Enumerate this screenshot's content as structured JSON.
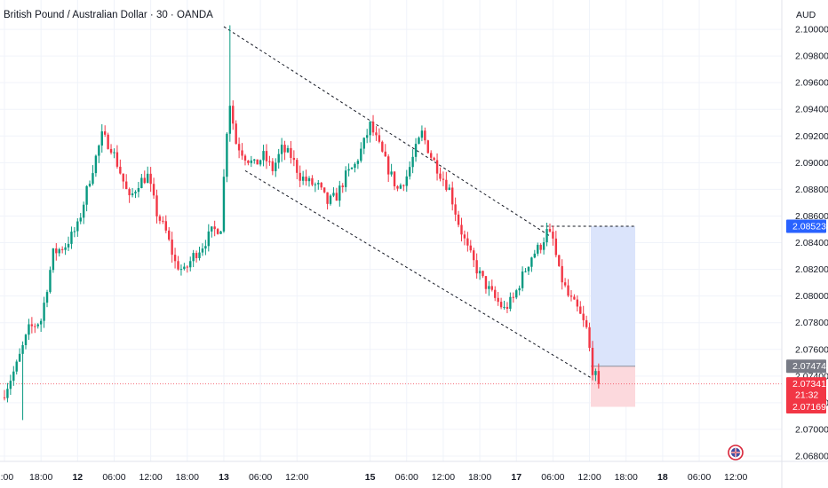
{
  "header": {
    "title": "British Pound / Australian Dollar · 30 · OANDA",
    "currency": "AUD"
  },
  "colors": {
    "up": "#089981",
    "down": "#f23645",
    "grid": "#f0f3fa",
    "blue_label": "#2962ff",
    "red_label": "#f23645",
    "gray_label": "#787b86",
    "profit_zone": "#dbe4fb",
    "loss_zone": "#fcd9dd"
  },
  "price_labels": {
    "target": "2.08523",
    "entry": "2.07474",
    "current": "2.07341",
    "countdown": "21:32",
    "stop": "2.07169"
  },
  "chart_data": {
    "type": "candlestick",
    "title": "British Pound / Australian Dollar · 30 · OANDA",
    "ylabel": "AUD",
    "ylim": [
      2.0676,
      2.1022
    ],
    "y_ticks": [
      "2.10000",
      "2.09800",
      "2.09600",
      "2.09400",
      "2.09200",
      "2.09000",
      "2.08800",
      "2.08600",
      "2.08400",
      "2.08200",
      "2.08000",
      "2.07800",
      "2.07600",
      "2.07400",
      "2.07200",
      "2.07000",
      "2.06800"
    ],
    "x_ticks": [
      {
        "label": "2:00",
        "bar": 0,
        "bold": false
      },
      {
        "label": "18:00",
        "bar": 12,
        "bold": false
      },
      {
        "label": "12",
        "bar": 24,
        "bold": true
      },
      {
        "label": "06:00",
        "bar": 36,
        "bold": false
      },
      {
        "label": "12:00",
        "bar": 48,
        "bold": false
      },
      {
        "label": "18:00",
        "bar": 60,
        "bold": false
      },
      {
        "label": "13",
        "bar": 72,
        "bold": true
      },
      {
        "label": "06:00",
        "bar": 84,
        "bold": false
      },
      {
        "label": "12:00",
        "bar": 96,
        "bold": false
      },
      {
        "label": "15",
        "bar": 120,
        "bold": true
      },
      {
        "label": "06:00",
        "bar": 132,
        "bold": false
      },
      {
        "label": "12:00",
        "bar": 144,
        "bold": false
      },
      {
        "label": "18:00",
        "bar": 156,
        "bold": false
      },
      {
        "label": "17",
        "bar": 168,
        "bold": true
      },
      {
        "label": "06:00",
        "bar": 180,
        "bold": false
      },
      {
        "label": "12:00",
        "bar": 192,
        "bold": false
      },
      {
        "label": "18:00",
        "bar": 204,
        "bold": false
      },
      {
        "label": "18",
        "bar": 216,
        "bold": true
      },
      {
        "label": "06:00",
        "bar": 228,
        "bold": false
      },
      {
        "label": "12:00",
        "bar": 240,
        "bold": false
      }
    ],
    "close_anchors": [
      [
        0,
        2.0728
      ],
      [
        4,
        2.0748
      ],
      [
        8,
        2.0775
      ],
      [
        12,
        2.0782
      ],
      [
        16,
        2.0832
      ],
      [
        20,
        2.0838
      ],
      [
        24,
        2.0852
      ],
      [
        28,
        2.0888
      ],
      [
        32,
        2.092
      ],
      [
        35,
        2.0912
      ],
      [
        38,
        2.0893
      ],
      [
        41,
        2.0872
      ],
      [
        44,
        2.0885
      ],
      [
        47,
        2.089
      ],
      [
        50,
        2.0862
      ],
      [
        53,
        2.0848
      ],
      [
        56,
        2.0825
      ],
      [
        59,
        2.0818
      ],
      [
        62,
        2.083
      ],
      [
        65,
        2.0838
      ],
      [
        68,
        2.0848
      ],
      [
        71,
        2.0852
      ],
      [
        73,
        2.0925
      ],
      [
        74,
        2.0945
      ],
      [
        76,
        2.0915
      ],
      [
        79,
        2.0905
      ],
      [
        82,
        2.0898
      ],
      [
        85,
        2.0905
      ],
      [
        88,
        2.0895
      ],
      [
        91,
        2.091
      ],
      [
        94,
        2.0905
      ],
      [
        97,
        2.089
      ],
      [
        100,
        2.0885
      ],
      [
        103,
        2.0882
      ],
      [
        106,
        2.087
      ],
      [
        109,
        2.0875
      ],
      [
        112,
        2.089
      ],
      [
        115,
        2.0898
      ],
      [
        118,
        2.0915
      ],
      [
        120,
        2.0928
      ],
      [
        123,
        2.0912
      ],
      [
        126,
        2.0895
      ],
      [
        129,
        2.088
      ],
      [
        132,
        2.089
      ],
      [
        135,
        2.091
      ],
      [
        137,
        2.0922
      ],
      [
        140,
        2.0905
      ],
      [
        143,
        2.0892
      ],
      [
        146,
        2.088
      ],
      [
        149,
        2.0855
      ],
      [
        152,
        2.0835
      ],
      [
        155,
        2.082
      ],
      [
        158,
        2.0808
      ],
      [
        161,
        2.0798
      ],
      [
        164,
        2.079
      ],
      [
        167,
        2.0798
      ],
      [
        170,
        2.0815
      ],
      [
        173,
        2.083
      ],
      [
        176,
        2.0838
      ],
      [
        178,
        2.0848
      ],
      [
        180,
        2.0842
      ],
      [
        182,
        2.0818
      ],
      [
        185,
        2.08
      ],
      [
        188,
        2.079
      ],
      [
        191,
        2.0775
      ],
      [
        193,
        2.0745
      ],
      [
        195,
        2.0734
      ]
    ],
    "trendlines": [
      {
        "style": "dashed",
        "from": {
          "bar": 72,
          "price": 2.1002
        },
        "to": {
          "bar": 179,
          "price": 2.0845
        }
      },
      {
        "style": "dashed",
        "from": {
          "bar": 79,
          "price": 2.0894
        },
        "to": {
          "bar": 193,
          "price": 2.0738
        }
      },
      {
        "style": "dashed",
        "from": {
          "bar": 176,
          "price": 2.08523
        },
        "to": {
          "bar": 207,
          "price": 2.08523
        }
      }
    ],
    "position": {
      "type": "long",
      "start_bar": 193,
      "end_bar": 207,
      "entry": 2.07474,
      "target": 2.08523,
      "stop": 2.07169
    },
    "current_price": 2.07341
  }
}
